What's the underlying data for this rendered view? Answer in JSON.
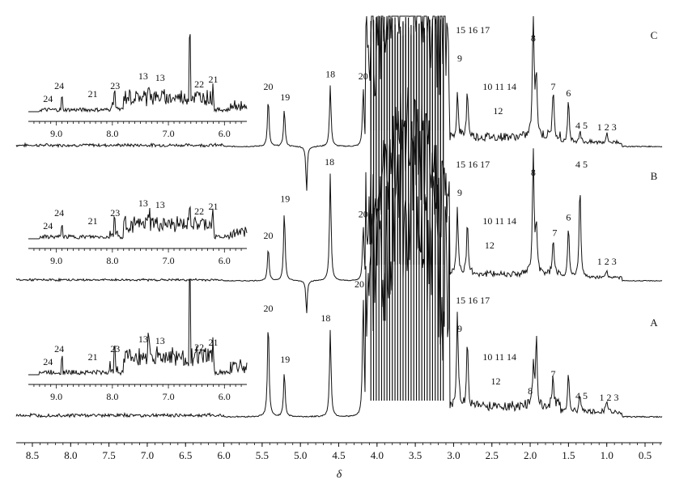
{
  "chart_data": {
    "type": "line",
    "title": "",
    "xlabel": "δ",
    "ylabel": "",
    "xlim": [
      8.75,
      0.25
    ],
    "x_reversed": true,
    "x_ticks": [
      "8.5",
      "8.0",
      "7.5",
      "7.0",
      "6.5",
      "6.0",
      "5.5",
      "5.0",
      "4.5",
      "4.0",
      "3.5",
      "3.0",
      "2.5",
      "2.0",
      "1.5",
      "1.0",
      "0.5"
    ],
    "grid": false,
    "legend": "none",
    "spectra": [
      {
        "tag": "C",
        "negative_peak_at": 4.92,
        "peaks": [
          {
            "x": 5.42,
            "h": 0.46
          },
          {
            "x": 5.21,
            "h": 0.36
          },
          {
            "x": 4.61,
            "h": 0.58
          },
          {
            "x": 4.18,
            "h": 0.56
          },
          {
            "x": 2.95,
            "h": 0.42
          },
          {
            "x": 2.82,
            "h": 0.46
          },
          {
            "x": 1.96,
            "h": 1.2
          },
          {
            "x": 1.92,
            "h": 0.62
          },
          {
            "x": 1.7,
            "h": 0.46
          },
          {
            "x": 1.5,
            "h": 0.4
          },
          {
            "x": 1.35,
            "h": 0.12
          },
          {
            "x": 1.0,
            "h": 0.08
          }
        ],
        "labels": [
          {
            "text": "20",
            "x": 5.42
          },
          {
            "text": "19",
            "x": 5.2
          },
          {
            "text": "18",
            "x": 4.61
          },
          {
            "text": "20",
            "x": 4.18
          },
          {
            "text": "15 16 17",
            "x": 2.75
          },
          {
            "text": "9",
            "x": 2.92
          },
          {
            "text": "10 11 14",
            "x": 2.4
          },
          {
            "text": "12",
            "x": 2.42
          },
          {
            "text": "8",
            "x": 1.96
          },
          {
            "text": "7",
            "x": 1.7
          },
          {
            "text": "6",
            "x": 1.5
          },
          {
            "text": "4 5",
            "x": 1.33
          },
          {
            "text": "1 2 3",
            "x": 1.0
          }
        ],
        "inset": {
          "ticks": [
            "9.0",
            "8.0",
            "7.0",
            "6.0"
          ],
          "labels": [
            "24",
            "24",
            "21",
            "23",
            "13",
            "13",
            "22",
            "21"
          ]
        }
      },
      {
        "tag": "B",
        "negative_peak_at": 4.92,
        "peaks": [
          {
            "x": 5.42,
            "h": 0.44
          },
          {
            "x": 5.21,
            "h": 0.92
          },
          {
            "x": 4.61,
            "h": 1.4
          },
          {
            "x": 4.18,
            "h": 0.72
          },
          {
            "x": 2.95,
            "h": 0.88
          },
          {
            "x": 2.82,
            "h": 0.7
          },
          {
            "x": 1.96,
            "h": 1.58
          },
          {
            "x": 1.92,
            "h": 0.62
          },
          {
            "x": 1.7,
            "h": 0.48
          },
          {
            "x": 1.5,
            "h": 0.68
          },
          {
            "x": 1.35,
            "h": 1.24
          },
          {
            "x": 1.0,
            "h": 0.1
          }
        ],
        "labels": [
          {
            "text": "20",
            "x": 5.42
          },
          {
            "text": "19",
            "x": 5.2
          },
          {
            "text": "18",
            "x": 4.62
          },
          {
            "text": "20",
            "x": 4.18
          },
          {
            "text": "15 16 17",
            "x": 2.75
          },
          {
            "text": "9",
            "x": 2.92
          },
          {
            "text": "10 11 14",
            "x": 2.4
          },
          {
            "text": "12",
            "x": 2.53
          },
          {
            "text": "8",
            "x": 1.96
          },
          {
            "text": "7",
            "x": 1.68
          },
          {
            "text": "6",
            "x": 1.5
          },
          {
            "text": "4 5",
            "x": 1.33
          },
          {
            "text": "1 2 3",
            "x": 1.0
          }
        ],
        "inset": {
          "ticks": [
            "9.0",
            "8.0",
            "7.0",
            "6.0"
          ],
          "labels": [
            "24",
            "24",
            "21",
            "23",
            "13",
            "13",
            "22",
            "21"
          ]
        }
      },
      {
        "tag": "A",
        "negative_peak_at": null,
        "peaks": [
          {
            "x": 5.42,
            "h": 0.8
          },
          {
            "x": 5.21,
            "h": 0.38
          },
          {
            "x": 4.61,
            "h": 0.72
          },
          {
            "x": 4.18,
            "h": 1.0
          },
          {
            "x": 2.95,
            "h": 0.82
          },
          {
            "x": 2.82,
            "h": 0.52
          },
          {
            "x": 1.96,
            "h": 0.3
          },
          {
            "x": 1.92,
            "h": 0.58
          },
          {
            "x": 1.7,
            "h": 0.26
          },
          {
            "x": 1.5,
            "h": 0.32
          },
          {
            "x": 1.35,
            "h": 0.14
          },
          {
            "x": 1.0,
            "h": 0.1
          }
        ],
        "labels": [
          {
            "text": "20",
            "x": 5.42
          },
          {
            "text": "19",
            "x": 5.2
          },
          {
            "text": "18",
            "x": 4.67
          },
          {
            "text": "20",
            "x": 4.23
          },
          {
            "text": "15 16 17",
            "x": 2.75
          },
          {
            "text": "9",
            "x": 2.92
          },
          {
            "text": "10 11 14",
            "x": 2.4
          },
          {
            "text": "12",
            "x": 2.45
          },
          {
            "text": "8",
            "x": 2.0
          },
          {
            "text": "7",
            "x": 1.7
          },
          {
            "text": "4 5",
            "x": 1.33
          },
          {
            "text": "1 2 3",
            "x": 0.97
          }
        ],
        "inset": {
          "ticks": [
            "9.0",
            "8.0",
            "7.0",
            "6.0"
          ],
          "labels": [
            "24",
            "24",
            "21",
            "23",
            "13",
            "13",
            "22",
            "21"
          ]
        }
      }
    ]
  }
}
